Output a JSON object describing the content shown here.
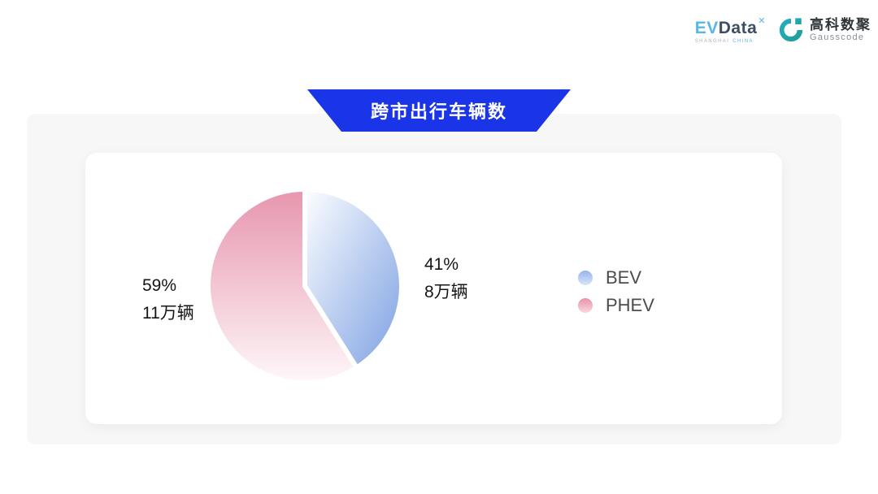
{
  "header": {
    "evdata": {
      "ev": "EV",
      "data": "Data",
      "mark": "✕",
      "sub_left": "SHANGHAI",
      "sub_right": "CHINA"
    },
    "gausscode": {
      "cn": "高科数聚",
      "en": "Gausscode",
      "icon_color_start": "#25AEC6",
      "icon_color_end": "#1D9E8F"
    }
  },
  "banner": {
    "title": "跨市出行车辆数",
    "bg_color": "#1A35E8",
    "text_color": "#FFFFFF"
  },
  "chart_data": {
    "type": "pie",
    "title": "跨市出行车辆数",
    "unit": "万辆",
    "start_angle": "12-oclock",
    "direction": "clockwise",
    "legend_position": "right",
    "border_color": "#FFFFFF",
    "border_width": 6,
    "series": [
      {
        "name": "BEV",
        "value": 8,
        "percent": 41,
        "percent_label": "41%",
        "value_label": "8万辆",
        "gradient": [
          "#FDFEFF",
          "#7CA0E2"
        ],
        "legend_dot": [
          "#93B4EB",
          "#D9E5F9"
        ]
      },
      {
        "name": "PHEV",
        "value": 11,
        "percent": 59,
        "percent_label": "59%",
        "value_label": "11万辆",
        "gradient": [
          "#E795AD",
          "#FEF7F9"
        ],
        "legend_dot": [
          "#E893AB",
          "#F6D8E0"
        ]
      }
    ]
  }
}
